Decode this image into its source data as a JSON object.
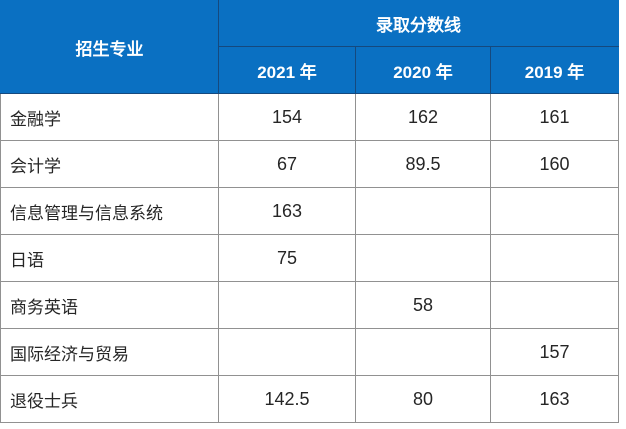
{
  "table": {
    "major_header": "招生专业",
    "score_header": "录取分数线",
    "year_headers": [
      "2021 年",
      "2020 年",
      "2019 年"
    ],
    "rows": [
      {
        "major": "金融学",
        "scores": [
          "154",
          "162",
          "161"
        ]
      },
      {
        "major": "会计学",
        "scores": [
          "67",
          "89.5",
          "160"
        ]
      },
      {
        "major": "信息管理与信息系统",
        "scores": [
          "163",
          "",
          ""
        ]
      },
      {
        "major": "日语",
        "scores": [
          "75",
          "",
          ""
        ]
      },
      {
        "major": "商务英语",
        "scores": [
          "",
          "58",
          ""
        ]
      },
      {
        "major": "国际经济与贸易",
        "scores": [
          "",
          "",
          "157"
        ]
      },
      {
        "major": "退役士兵",
        "scores": [
          "142.5",
          "80",
          "163"
        ]
      }
    ],
    "colors": {
      "header_bg": "#0a70c2",
      "header_border": "#15497e",
      "header_text": "#ffffff",
      "grid_line": "#919191",
      "text": "#262626"
    }
  }
}
